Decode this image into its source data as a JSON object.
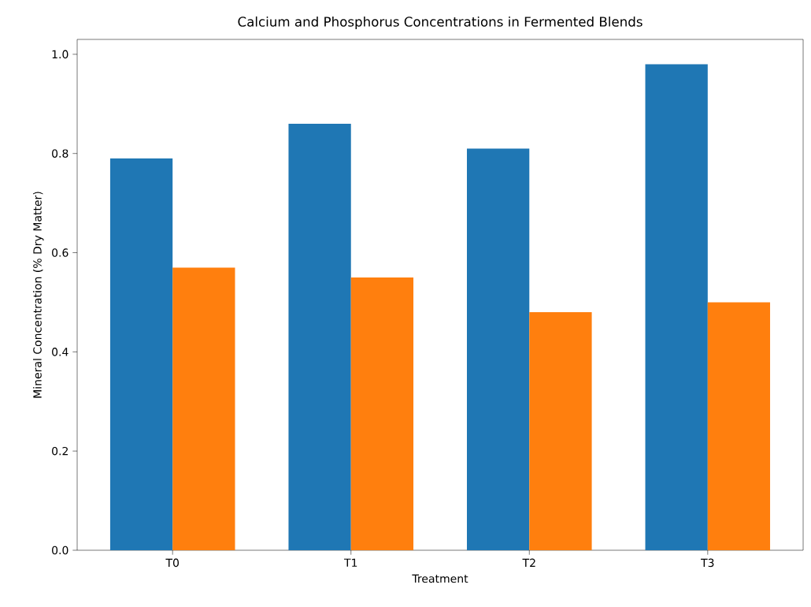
{
  "chart_data": {
    "type": "bar",
    "title": "Calcium and Phosphorus Concentrations in Fermented Blends",
    "xlabel": "Treatment",
    "ylabel": "Mineral Concentration (% Dry Matter)",
    "categories": [
      "T0",
      "T1",
      "T2",
      "T3"
    ],
    "series": [
      {
        "color": "#1f77b4",
        "values": [
          0.79,
          0.86,
          0.81,
          0.98
        ]
      },
      {
        "color": "#ff7f0e",
        "values": [
          0.57,
          0.55,
          0.48,
          0.5
        ]
      }
    ],
    "ylim": [
      0,
      1.03
    ],
    "yticks": [
      {
        "value": 0,
        "label": "0.0"
      },
      {
        "value": 0.2,
        "label": "0.2"
      },
      {
        "value": 0.4,
        "label": "0.4"
      },
      {
        "value": 0.6,
        "label": "0.6"
      },
      {
        "value": 0.8,
        "label": "0.8"
      },
      {
        "value": 1.0,
        "label": "1.0"
      }
    ],
    "grid": false
  }
}
